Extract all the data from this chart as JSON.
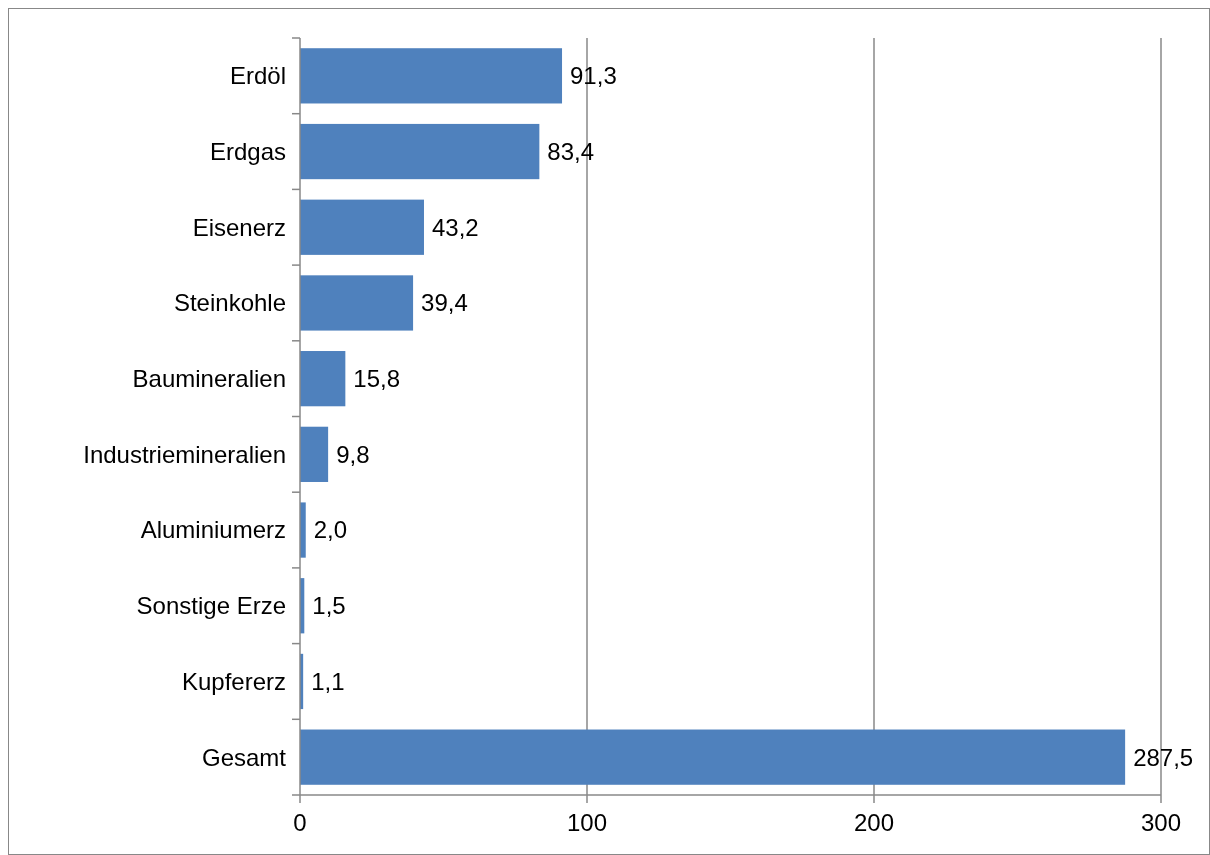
{
  "chart_data": {
    "type": "bar",
    "orientation": "horizontal",
    "categories": [
      "Erdöl",
      "Erdgas",
      "Eisenerz",
      "Steinkohle",
      "Baumineralien",
      "Industriemineralien",
      "Aluminiumerz",
      "Sonstige Erze",
      "Kupfererz",
      "Gesamt"
    ],
    "values": [
      91.3,
      83.4,
      43.2,
      39.4,
      15.8,
      9.8,
      2.0,
      1.5,
      1.1,
      287.5
    ],
    "value_labels": [
      "91,3",
      "83,4",
      "43,2",
      "39,4",
      "15,8",
      "9,8",
      "2,0",
      "1,5",
      "1,1",
      "287,5"
    ],
    "color": "#4f81bd",
    "xlim": [
      0,
      300
    ],
    "xticks": [
      0,
      100,
      200,
      300
    ],
    "grid": "x"
  }
}
